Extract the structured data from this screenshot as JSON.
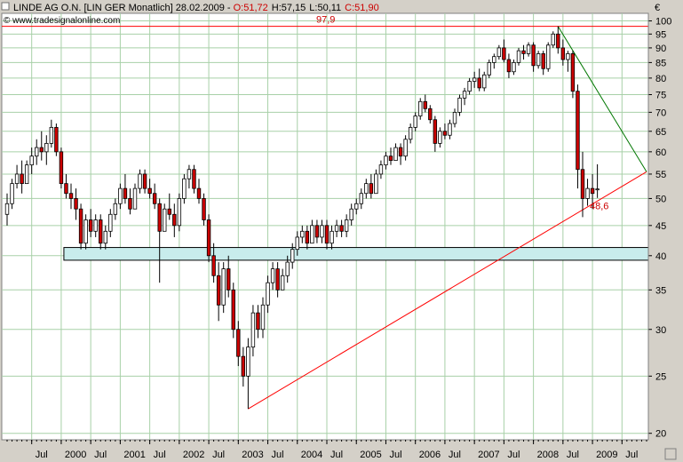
{
  "header": {
    "title": "LINDE AG O.N. [LIN GER  Monatlich] 28.02.2009 - ",
    "open": "O:51,72",
    "high": "H:57,15",
    "low": "L:50,11",
    "close": "C:51,90",
    "source": "© www.tradesignalonline.com",
    "currency": "€"
  },
  "colors": {
    "up": "#ffffff",
    "down": "#cc0000",
    "grid": "#a8d0a8",
    "resistance": "#ff0000",
    "trendline": "#ff0000",
    "downtrend": "#007700",
    "zone": "#c8ecec"
  },
  "annotations": {
    "top_line": "97,9",
    "last_low": "48,6"
  },
  "chart_data": {
    "type": "candlestick",
    "yscale": "log",
    "ylim": [
      19.5,
      103
    ],
    "yticks": [
      20,
      25,
      30,
      35,
      40,
      45,
      50,
      55,
      60,
      65,
      70,
      75,
      80,
      85,
      90,
      95,
      100
    ],
    "xlim": [
      "1999-02",
      "2009-12"
    ],
    "x_tick_labels": [
      "Jul",
      "2000",
      "Jul",
      "2001",
      "Jul",
      "2002",
      "Jul",
      "2003",
      "Jul",
      "2004",
      "Jul",
      "2005",
      "Jul",
      "2006",
      "Jul",
      "2007",
      "Jul",
      "2008",
      "Jul",
      "2009",
      "Jul"
    ],
    "horizontal_lines": [
      {
        "label": "97,9",
        "value": 97.9
      }
    ],
    "support_zone": [
      39.3,
      41.3
    ],
    "trendline_up": {
      "from": [
        "2003-03",
        22.0
      ],
      "to": [
        "2009-12",
        55.5
      ]
    },
    "trendline_down": {
      "from": [
        "2008-06",
        97.9
      ],
      "to": [
        "2009-12",
        55.5
      ]
    },
    "candles": [
      [
        "1999-02",
        47,
        51,
        45,
        49
      ],
      [
        "1999-03",
        49,
        54,
        48,
        53
      ],
      [
        "1999-04",
        53,
        57,
        52,
        55
      ],
      [
        "1999-05",
        55,
        58,
        51,
        53
      ],
      [
        "1999-06",
        53,
        58,
        53,
        57
      ],
      [
        "1999-07",
        57,
        61,
        55,
        59
      ],
      [
        "1999-08",
        59,
        63,
        57,
        61
      ],
      [
        "1999-09",
        61,
        65,
        58,
        60
      ],
      [
        "1999-10",
        60,
        64,
        57,
        62
      ],
      [
        "1999-11",
        62,
        68,
        61,
        66
      ],
      [
        "1999-12",
        66,
        67,
        59,
        60
      ],
      [
        "2000-01",
        60,
        61,
        52,
        53
      ],
      [
        "2000-02",
        53,
        55,
        50,
        51
      ],
      [
        "2000-03",
        51,
        53,
        48,
        50
      ],
      [
        "2000-04",
        50,
        52,
        46,
        48
      ],
      [
        "2000-05",
        48,
        49,
        41,
        42
      ],
      [
        "2000-06",
        42,
        47,
        41,
        46
      ],
      [
        "2000-07",
        46,
        48,
        43,
        44
      ],
      [
        "2000-08",
        44,
        47,
        43,
        46
      ],
      [
        "2000-09",
        46,
        47,
        41,
        42
      ],
      [
        "2000-10",
        42,
        45,
        41,
        44
      ],
      [
        "2000-11",
        44,
        48,
        43,
        47
      ],
      [
        "2000-12",
        47,
        50,
        46,
        49
      ],
      [
        "2001-01",
        49,
        53,
        48,
        52
      ],
      [
        "2001-02",
        52,
        55,
        49,
        50
      ],
      [
        "2001-03",
        50,
        52,
        47,
        48
      ],
      [
        "2001-04",
        48,
        53,
        48,
        52
      ],
      [
        "2001-05",
        52,
        56,
        51,
        55
      ],
      [
        "2001-06",
        55,
        56,
        51,
        52
      ],
      [
        "2001-07",
        52,
        54,
        50,
        51
      ],
      [
        "2001-08",
        51,
        53,
        48,
        49
      ],
      [
        "2001-09",
        49,
        50,
        36,
        44
      ],
      [
        "2001-10",
        44,
        49,
        44,
        48
      ],
      [
        "2001-11",
        48,
        51,
        46,
        47
      ],
      [
        "2001-12",
        47,
        49,
        43,
        45
      ],
      [
        "2002-01",
        45,
        51,
        44,
        50
      ],
      [
        "2002-02",
        50,
        55,
        49,
        54
      ],
      [
        "2002-03",
        54,
        57,
        52,
        56
      ],
      [
        "2002-04",
        56,
        57,
        51,
        52
      ],
      [
        "2002-05",
        52,
        54,
        49,
        50
      ],
      [
        "2002-06",
        50,
        51,
        45,
        46
      ],
      [
        "2002-07",
        46,
        47,
        39,
        40
      ],
      [
        "2002-08",
        40,
        42,
        36,
        37
      ],
      [
        "2002-09",
        37,
        39,
        31,
        33
      ],
      [
        "2002-10",
        33,
        39,
        32,
        38
      ],
      [
        "2002-11",
        38,
        40,
        34,
        35
      ],
      [
        "2002-12",
        35,
        36,
        29,
        30
      ],
      [
        "2003-01",
        30,
        31,
        26,
        27
      ],
      [
        "2003-02",
        27,
        28,
        24,
        25
      ],
      [
        "2003-03",
        25,
        29,
        22,
        28
      ],
      [
        "2003-04",
        28,
        33,
        27,
        32
      ],
      [
        "2003-05",
        32,
        33,
        29,
        30
      ],
      [
        "2003-06",
        30,
        34,
        29,
        33
      ],
      [
        "2003-07",
        33,
        37,
        32,
        36
      ],
      [
        "2003-08",
        36,
        39,
        35,
        38
      ],
      [
        "2003-09",
        38,
        39,
        34,
        35
      ],
      [
        "2003-10",
        35,
        38,
        35,
        37
      ],
      [
        "2003-11",
        37,
        40,
        36,
        39
      ],
      [
        "2003-12",
        39,
        42,
        38,
        41
      ],
      [
        "2004-01",
        41,
        44,
        40,
        43
      ],
      [
        "2004-02",
        43,
        45,
        42,
        44
      ],
      [
        "2004-03",
        44,
        45,
        41,
        42
      ],
      [
        "2004-04",
        42,
        46,
        42,
        45
      ],
      [
        "2004-05",
        45,
        46,
        42,
        43
      ],
      [
        "2004-06",
        43,
        46,
        42,
        45
      ],
      [
        "2004-07",
        45,
        46,
        41,
        42
      ],
      [
        "2004-08",
        42,
        45,
        41,
        44
      ],
      [
        "2004-09",
        44,
        46,
        43,
        45
      ],
      [
        "2004-10",
        45,
        46,
        43,
        44
      ],
      [
        "2004-11",
        44,
        47,
        43,
        46
      ],
      [
        "2004-12",
        46,
        49,
        45,
        48
      ],
      [
        "2005-01",
        48,
        50,
        47,
        49
      ],
      [
        "2005-02",
        49,
        52,
        48,
        51
      ],
      [
        "2005-03",
        51,
        54,
        50,
        53
      ],
      [
        "2005-04",
        53,
        55,
        50,
        51
      ],
      [
        "2005-05",
        51,
        56,
        51,
        55
      ],
      [
        "2005-06",
        55,
        58,
        54,
        57
      ],
      [
        "2005-07",
        57,
        60,
        56,
        59
      ],
      [
        "2005-08",
        59,
        61,
        57,
        58
      ],
      [
        "2005-09",
        58,
        62,
        58,
        61
      ],
      [
        "2005-10",
        61,
        62,
        57,
        59
      ],
      [
        "2005-11",
        59,
        64,
        58,
        63
      ],
      [
        "2005-12",
        63,
        67,
        62,
        66
      ],
      [
        "2006-01",
        66,
        70,
        65,
        69
      ],
      [
        "2006-02",
        69,
        74,
        68,
        73
      ],
      [
        "2006-03",
        73,
        75,
        70,
        71
      ],
      [
        "2006-04",
        71,
        72,
        67,
        68
      ],
      [
        "2006-05",
        68,
        69,
        60,
        62
      ],
      [
        "2006-06",
        62,
        66,
        61,
        65
      ],
      [
        "2006-07",
        65,
        67,
        63,
        64
      ],
      [
        "2006-08",
        64,
        68,
        63,
        67
      ],
      [
        "2006-09",
        67,
        71,
        66,
        70
      ],
      [
        "2006-10",
        70,
        75,
        69,
        74
      ],
      [
        "2006-11",
        74,
        77,
        72,
        76
      ],
      [
        "2006-12",
        76,
        80,
        75,
        79
      ],
      [
        "2007-01",
        79,
        82,
        77,
        80
      ],
      [
        "2007-02",
        80,
        83,
        76,
        77
      ],
      [
        "2007-03",
        77,
        82,
        76,
        81
      ],
      [
        "2007-04",
        81,
        86,
        80,
        85
      ],
      [
        "2007-05",
        85,
        88,
        83,
        87
      ],
      [
        "2007-06",
        87,
        91,
        86,
        90
      ],
      [
        "2007-07",
        90,
        93,
        85,
        86
      ],
      [
        "2007-08",
        86,
        88,
        80,
        82
      ],
      [
        "2007-09",
        82,
        86,
        81,
        85
      ],
      [
        "2007-10",
        85,
        90,
        84,
        89
      ],
      [
        "2007-11",
        89,
        91,
        86,
        88
      ],
      [
        "2007-12",
        88,
        92,
        87,
        91
      ],
      [
        "2008-01",
        91,
        92,
        82,
        84
      ],
      [
        "2008-02",
        84,
        89,
        83,
        88
      ],
      [
        "2008-03",
        88,
        89,
        81,
        83
      ],
      [
        "2008-04",
        83,
        92,
        82,
        91
      ],
      [
        "2008-05",
        91,
        96,
        90,
        95
      ],
      [
        "2008-06",
        95,
        97.9,
        88,
        90
      ],
      [
        "2008-07",
        90,
        93,
        84,
        86
      ],
      [
        "2008-08",
        86,
        89,
        82,
        88
      ],
      [
        "2008-09",
        88,
        89,
        74,
        76
      ],
      [
        "2008-10",
        76,
        78,
        52,
        56
      ],
      [
        "2008-11",
        56,
        60,
        46.5,
        50
      ],
      [
        "2008-12",
        50,
        54,
        48.6,
        52
      ],
      [
        "2009-01",
        52,
        55,
        48,
        51
      ],
      [
        "2009-02",
        51.72,
        57.15,
        50.11,
        51.9
      ]
    ]
  }
}
